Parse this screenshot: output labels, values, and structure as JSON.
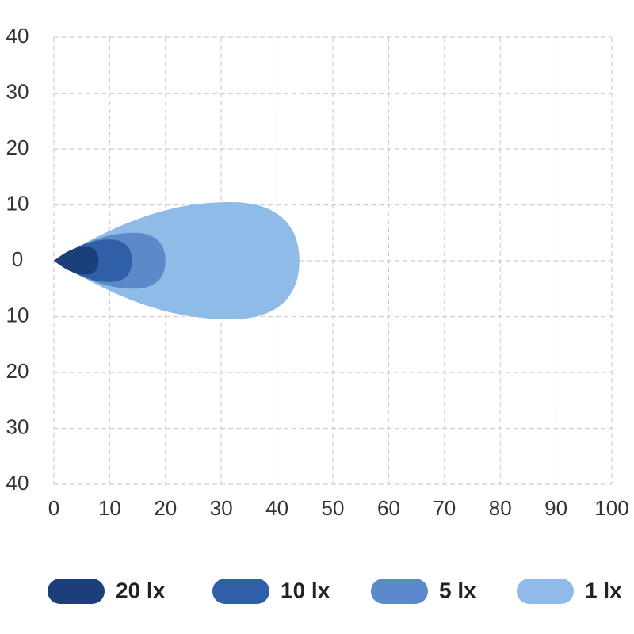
{
  "chart_data": {
    "type": "beam",
    "xlim": [
      0,
      100
    ],
    "xticks": [
      0,
      10,
      20,
      30,
      40,
      50,
      60,
      70,
      80,
      90,
      100
    ],
    "ylim": [
      -40,
      40
    ],
    "yticks": [
      40,
      30,
      20,
      10,
      0,
      {
        "value": -10,
        "label": "10"
      },
      {
        "value": -20,
        "label": "20"
      },
      {
        "value": -30,
        "label": "30"
      },
      {
        "value": -40,
        "label": "40"
      }
    ],
    "grid": true,
    "series": [
      {
        "name": "20 lx",
        "color": "#1b3f7b",
        "reach": 8,
        "half_width": 2.5
      },
      {
        "name": "10 lx",
        "color": "#2f5fa6",
        "reach": 14,
        "half_width": 3.8
      },
      {
        "name": "5 lx",
        "color": "#5b8acb",
        "reach": 20,
        "half_width": 5
      },
      {
        "name": "1 lx",
        "color": "#8fbbe9",
        "reach": 44,
        "half_width": 10.5
      }
    ]
  }
}
